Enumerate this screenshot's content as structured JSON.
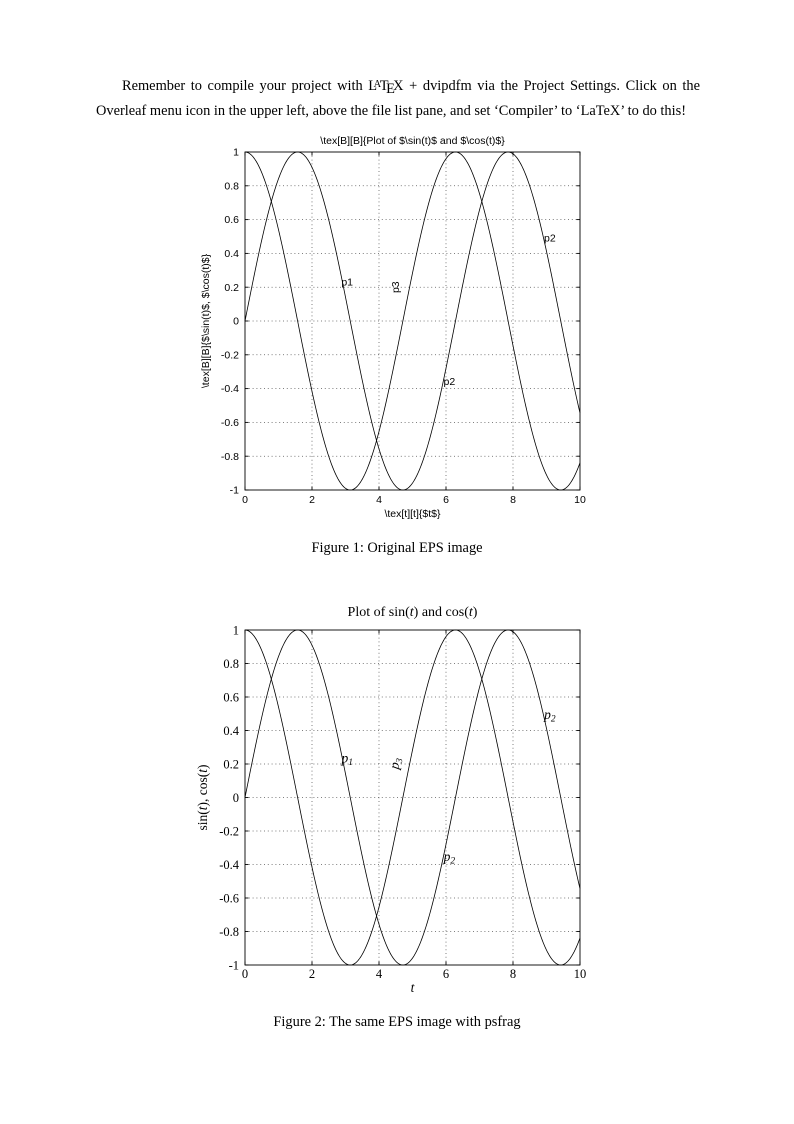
{
  "page": {
    "paragraph": {
      "pre": "Remember to compile your project with ",
      "logo": {
        "l": "L",
        "a": "A",
        "t": "T",
        "e": "E",
        "x": "X"
      },
      "post": " + dvipdfm via the Project Settings. Click on the Overleaf menu icon in the upper left, above the file list pane, and set ‘Compiler’ to ‘LaTeX’ to do this!"
    },
    "figure1_caption": "Figure 1: Original EPS image",
    "figure2_caption": "Figure 2: The same EPS image with psfrag"
  },
  "chart_data": [
    {
      "id": "figure1",
      "type": "line",
      "font": "sans",
      "title_segments": [
        {
          "text": "\\tex[B][B]{Plot of $\\sin(t)$ and $\\cos(t)$}",
          "style": "roman"
        }
      ],
      "xlabel_segments": [
        {
          "text": "\\tex[t][t]{$t$}",
          "style": "roman"
        }
      ],
      "ylabel_segments": [
        {
          "text": "\\tex[B][B]{$\\sin(t)$, $\\cos(t)$}",
          "style": "roman"
        }
      ],
      "xlim": [
        0,
        10
      ],
      "ylim": [
        -1,
        1
      ],
      "x_ticks": [
        0,
        2,
        4,
        6,
        8,
        10
      ],
      "x_tick_labels": [
        "0",
        "2",
        "4",
        "6",
        "8",
        "10"
      ],
      "y_ticks": [
        1,
        0.8,
        0.6,
        0.4,
        0.2,
        0,
        -0.2,
        -0.4,
        -0.6,
        -0.8,
        -1
      ],
      "y_tick_labels": [
        "1",
        "0.8",
        "0.6",
        "0.4",
        "0.2",
        "0",
        "-0.2",
        "-0.4",
        "-0.6",
        "-0.8",
        "-1"
      ],
      "grid": "dotted",
      "legend": "none",
      "series": [
        {
          "name": "sin",
          "label": "sin(t)",
          "fn": "sin",
          "x_min": 0,
          "x_max": 10,
          "amplitude": 1
        },
        {
          "name": "cos",
          "label": "cos(t)",
          "fn": "cos",
          "x_min": 0,
          "x_max": 10,
          "amplitude": 1
        }
      ],
      "annotations": [
        {
          "text": "p1",
          "x": 3.05,
          "y": 0.21,
          "rotation": 0
        },
        {
          "text": "p3",
          "x": 4.6,
          "y": 0.2,
          "rotation": -90
        },
        {
          "text": "p2",
          "x": 6.1,
          "y": -0.38,
          "rotation": 0
        },
        {
          "text": "p2",
          "x": 9.1,
          "y": 0.47,
          "rotation": 0
        }
      ]
    },
    {
      "id": "figure2",
      "type": "line",
      "font": "serif",
      "title_segments": [
        {
          "text": "Plot of sin(",
          "style": "roman"
        },
        {
          "text": "t",
          "style": "italic"
        },
        {
          "text": ") and cos(",
          "style": "roman"
        },
        {
          "text": "t",
          "style": "italic"
        },
        {
          "text": ")",
          "style": "roman"
        }
      ],
      "xlabel_segments": [
        {
          "text": "t",
          "style": "italic"
        }
      ],
      "ylabel_segments": [
        {
          "text": "sin(",
          "style": "roman"
        },
        {
          "text": "t",
          "style": "italic"
        },
        {
          "text": "), cos(",
          "style": "roman"
        },
        {
          "text": "t",
          "style": "italic"
        },
        {
          "text": ")",
          "style": "roman"
        }
      ],
      "xlim": [
        0,
        10
      ],
      "ylim": [
        -1,
        1
      ],
      "x_ticks": [
        0,
        2,
        4,
        6,
        8,
        10
      ],
      "x_tick_labels": [
        "0",
        "2",
        "4",
        "6",
        "8",
        "10"
      ],
      "y_ticks": [
        1,
        0.8,
        0.6,
        0.4,
        0.2,
        0,
        -0.2,
        -0.4,
        -0.6,
        -0.8,
        -1
      ],
      "y_tick_labels": [
        "1",
        "0.8",
        "0.6",
        "0.4",
        "0.2",
        "0",
        "-0.2",
        "-0.4",
        "-0.6",
        "-0.8",
        "-1"
      ],
      "grid": "dotted",
      "legend": "none",
      "series": [
        {
          "name": "sin",
          "label": "sin(t)",
          "fn": "sin",
          "x_min": 0,
          "x_max": 10,
          "amplitude": 1
        },
        {
          "name": "cos",
          "label": "cos(t)",
          "fn": "cos",
          "x_min": 0,
          "x_max": 10,
          "amplitude": 1
        }
      ],
      "annotations": [
        {
          "base": "p",
          "sub": "1",
          "x": 3.05,
          "y": 0.21,
          "rotation": 0
        },
        {
          "base": "p",
          "sub": "3",
          "x": 4.6,
          "y": 0.2,
          "rotation": -80
        },
        {
          "base": "p",
          "sub": "2",
          "x": 6.1,
          "y": -0.38,
          "rotation": 0
        },
        {
          "base": "p",
          "sub": "2",
          "x": 9.1,
          "y": 0.47,
          "rotation": 0
        }
      ]
    }
  ]
}
